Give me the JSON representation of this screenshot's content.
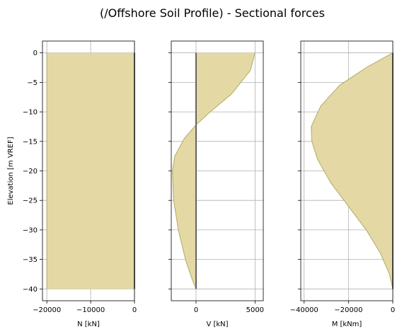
{
  "figure": {
    "title": "(/Offshore Soil Profile) - Sectional forces",
    "fill_color": "#e4d9a5",
    "edge_color": "#b3a965",
    "pile_line_color": "#555555"
  },
  "chart_data": [
    {
      "type": "area",
      "xlabel": "N [kN]",
      "ylabel": "Elevation [m VREF]",
      "xlim": [
        -21000,
        0
      ],
      "ylim": [
        -42,
        2
      ],
      "xticks": [
        -20000,
        -10000,
        0
      ],
      "xtick_labels": [
        "−20000",
        "−10000",
        "0"
      ],
      "yticks": [
        0,
        -5,
        -10,
        -15,
        -20,
        -25,
        -30,
        -35,
        -40
      ],
      "ytick_labels": [
        "0",
        "−5",
        "−10",
        "−15",
        "−20",
        "−25",
        "−30",
        "−35",
        "−40"
      ],
      "show_ytick_labels": true,
      "grid": true,
      "series": [
        {
          "x": [
            -20000,
            -20000,
            -20000,
            -20000,
            -20000,
            -20000,
            -20000,
            -20000,
            -20000
          ],
          "y": [
            0,
            -5,
            -10,
            -15,
            -20,
            -25,
            -30,
            -35,
            -40
          ]
        }
      ]
    },
    {
      "type": "area",
      "xlabel": "V [kN]",
      "ylabel": "",
      "xlim": [
        -2100,
        5700
      ],
      "ylim": [
        -42,
        2
      ],
      "xticks": [
        0,
        5000
      ],
      "xtick_labels": [
        "0",
        "5000"
      ],
      "yticks": [
        0,
        -5,
        -10,
        -15,
        -20,
        -25,
        -30,
        -35,
        -40
      ],
      "ytick_labels": [
        "0",
        "−5",
        "−10",
        "−15",
        "−20",
        "−25",
        "−30",
        "−35",
        "−40"
      ],
      "show_ytick_labels": false,
      "grid": true,
      "series": [
        {
          "x": [
            5000,
            4600,
            3000,
            1200,
            0,
            -1000,
            -1800,
            -2000,
            -1900,
            -1500,
            -900,
            -400,
            0
          ],
          "y": [
            0,
            -3,
            -7,
            -10,
            -12.2,
            -14.5,
            -17.5,
            -20,
            -25,
            -30,
            -35,
            -38,
            -40
          ]
        }
      ]
    },
    {
      "type": "area",
      "xlabel": "M [kNm]",
      "ylabel": "",
      "xlim": [
        -41500,
        0
      ],
      "ylim": [
        -42,
        2
      ],
      "xticks": [
        -40000,
        -20000,
        0
      ],
      "xtick_labels": [
        "−40000",
        "−20000",
        "0"
      ],
      "yticks": [
        0,
        -5,
        -10,
        -15,
        -20,
        -25,
        -30,
        -35,
        -40
      ],
      "ytick_labels": [
        "0",
        "−5",
        "−10",
        "−15",
        "−20",
        "−25",
        "−30",
        "−35",
        "−40"
      ],
      "show_ytick_labels": false,
      "grid": true,
      "series": [
        {
          "x": [
            0,
            -12000,
            -24000,
            -32500,
            -36800,
            -36500,
            -34000,
            -28000,
            -20000,
            -12000,
            -5500,
            -1500,
            0
          ],
          "y": [
            0,
            -2.5,
            -5.5,
            -9,
            -12.5,
            -15,
            -18,
            -22,
            -26,
            -30,
            -34,
            -37.5,
            -40
          ]
        }
      ]
    }
  ]
}
